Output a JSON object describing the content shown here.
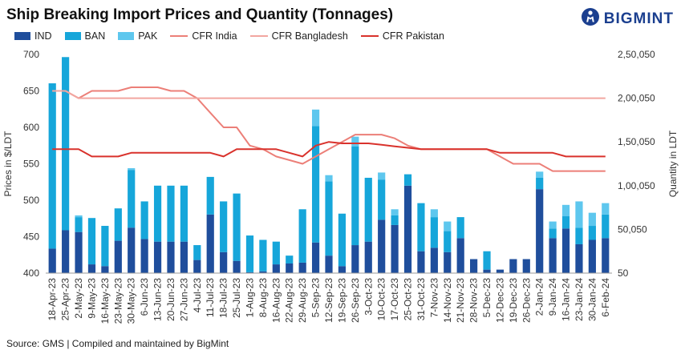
{
  "title": "Ship Breaking Import Prices and Quantity (Tonnages)",
  "logo": {
    "text": "BIGMINT",
    "icon": "person-circle-logo-icon"
  },
  "source": "Source: GMS | Compiled and maintained by BigMint",
  "colors": {
    "IND": "#1f4e9c",
    "BAN": "#16a6da",
    "PAK": "#5ec7ee",
    "CFR_India": "#ec7f78",
    "CFR_Bangladesh": "#f2a6a0",
    "CFR_Pakistan": "#d9322c"
  },
  "legend": [
    {
      "label": "IND",
      "type": "box",
      "color_key": "IND"
    },
    {
      "label": "BAN",
      "type": "box",
      "color_key": "BAN"
    },
    {
      "label": "PAK",
      "type": "box",
      "color_key": "PAK"
    },
    {
      "label": "CFR India",
      "type": "line",
      "color_key": "CFR_India"
    },
    {
      "label": "CFR Bangladesh",
      "type": "line",
      "color_key": "CFR_Bangladesh"
    },
    {
      "label": "CFR Pakistan",
      "type": "line",
      "color_key": "CFR_Pakistan"
    }
  ],
  "chart_data": {
    "type": "bar",
    "title": "Ship Breaking Import Prices and Quantity (Tonnages)",
    "ylabel": "Prices in $/LDT",
    "y2label": "Quantity in LDT",
    "ylim": [
      400,
      700
    ],
    "y2lim": [
      50,
      250050
    ],
    "y_ticks": [
      "400",
      "450",
      "500",
      "550",
      "600",
      "650",
      "700"
    ],
    "y2_ticks": [
      "50",
      "50,050",
      "1,00,050",
      "1,50,050",
      "2,00,050",
      "2,50,050"
    ],
    "grid": false,
    "legend_position": "top-left",
    "categories": [
      "18-Apr-23",
      "25-Apr-23",
      "2-May-23",
      "9-May-23",
      "16-May-23",
      "23-May-23",
      "30-May-23",
      "6-Jun-23",
      "13-Jun-23",
      "20-Jun-23",
      "27-Jun-23",
      "4-Jul-23",
      "11-Jul-23",
      "18-Jul-23",
      "25-Jul-23",
      "1-Aug-23",
      "8-Aug-23",
      "16-Aug-23",
      "22-Aug-23",
      "29-Aug-23",
      "5-Sep-23",
      "12-Sep-23",
      "19-Sep-23",
      "26-Sep-23",
      "3-Oct-23",
      "10-Oct-23",
      "17-Oct-23",
      "25-Oct-23",
      "31-Oct-23",
      "7-Nov-23",
      "14-Nov-23",
      "21-Nov-23",
      "28-Nov-23",
      "5-Dec-23",
      "12-Dec-23",
      "19-Dec-23",
      "26-Dec-23",
      "2-Jan-24",
      "9-Jan-24",
      "16-Jan-24",
      "23-Jan-24",
      "30-Jan-24",
      "6-Feb-24"
    ],
    "x_labels_shown": [
      "18-Apr-23",
      "25-Apr-23",
      "2-May-23",
      "9-May-23",
      "16-May-23",
      "23-May-23",
      "30-May-23",
      "6-Jun-23",
      "13-Jun-23",
      "20-Jun-23",
      "27-Jun-23",
      "4-Jul-23",
      "11-Jul-23",
      "18-Jul-23",
      "25-Jul-23",
      "1-Aug-23",
      "8-Aug-23",
      "16-Aug-23",
      "22-Aug-23",
      "29-Aug-23",
      "5-Sep-23",
      "12-Sep-23",
      "19-Sep-23",
      "26-Sep-23",
      "3-Oct-23",
      "10-Oct-23",
      "17-Oct-23",
      "25-Oct-23",
      "31-Oct-23",
      "7-Nov-23",
      "14-Nov-23",
      "21-Nov-23",
      "28-Nov-23",
      "5-Dec-23",
      "12-Dec-23",
      "19-Dec-23",
      "26-Dec-23",
      "2-Jan-24",
      "9-Jan-24",
      "16-Jan-24",
      "23-Jan-24",
      "30-Jan-24",
      "6-Feb-24"
    ],
    "bar_series": [
      {
        "name": "IND",
        "values": [
          28000,
          49000,
          47000,
          10000,
          8000,
          37000,
          52000,
          39000,
          36000,
          36000,
          36000,
          15000,
          67000,
          24000,
          14000,
          1000,
          2000,
          10000,
          11000,
          12000,
          35000,
          20000,
          8000,
          32000,
          36000,
          61000,
          55000,
          100000,
          25000,
          29000,
          24000,
          40000,
          16000,
          4000,
          4000,
          16000,
          16000,
          96000,
          40000,
          51000,
          33000,
          38000,
          40000
        ]
      },
      {
        "name": "BAN",
        "values": [
          189000,
          198000,
          17000,
          53000,
          46000,
          37000,
          66000,
          43000,
          64000,
          64000,
          64000,
          17000,
          43000,
          58000,
          77000,
          42000,
          36000,
          26000,
          9000,
          61000,
          133000,
          85000,
          60000,
          113000,
          73000,
          46000,
          11000,
          13000,
          55000,
          35000,
          24000,
          24000,
          0,
          21000,
          0,
          0,
          0,
          13000,
          11000,
          14000,
          19000,
          16000,
          27000
        ]
      },
      {
        "name": "PAK",
        "values": [
          0,
          0,
          2000,
          0,
          0,
          0,
          2000,
          0,
          0,
          0,
          0,
          0,
          0,
          0,
          0,
          0,
          0,
          0,
          0,
          0,
          19000,
          7000,
          0,
          11000,
          0,
          8000,
          7000,
          0,
          0,
          9000,
          11000,
          0,
          0,
          0,
          0,
          0,
          0,
          7000,
          8000,
          13000,
          30000,
          15000,
          13000
        ]
      }
    ],
    "line_series": [
      {
        "name": "CFR India",
        "values": [
          650,
          650,
          640,
          650,
          650,
          650,
          655,
          655,
          655,
          650,
          650,
          640,
          620,
          600,
          600,
          575,
          570,
          560,
          555,
          550,
          560,
          570,
          580,
          590,
          590,
          590,
          585,
          575,
          570,
          570,
          570,
          570,
          570,
          570,
          560,
          550,
          550,
          550,
          540,
          540,
          540,
          540,
          540
        ]
      },
      {
        "name": "CFR Bangladesh",
        "values": [
          650,
          650,
          640,
          640,
          640,
          640,
          640,
          640,
          640,
          640,
          640,
          640,
          640,
          640,
          640,
          640,
          640,
          640,
          640,
          640,
          640,
          640,
          640,
          640,
          640,
          640,
          640,
          640,
          640,
          640,
          640,
          640,
          640,
          640,
          640,
          640,
          640,
          640,
          640,
          640,
          640,
          640,
          640
        ]
      },
      {
        "name": "CFR Pakistan",
        "values": [
          570,
          570,
          570,
          560,
          560,
          560,
          565,
          565,
          565,
          565,
          565,
          565,
          565,
          560,
          570,
          570,
          570,
          570,
          565,
          560,
          575,
          580,
          578,
          578,
          578,
          576,
          574,
          572,
          570,
          570,
          570,
          570,
          570,
          570,
          565,
          565,
          565,
          565,
          565,
          560,
          560,
          560,
          560
        ]
      }
    ]
  }
}
